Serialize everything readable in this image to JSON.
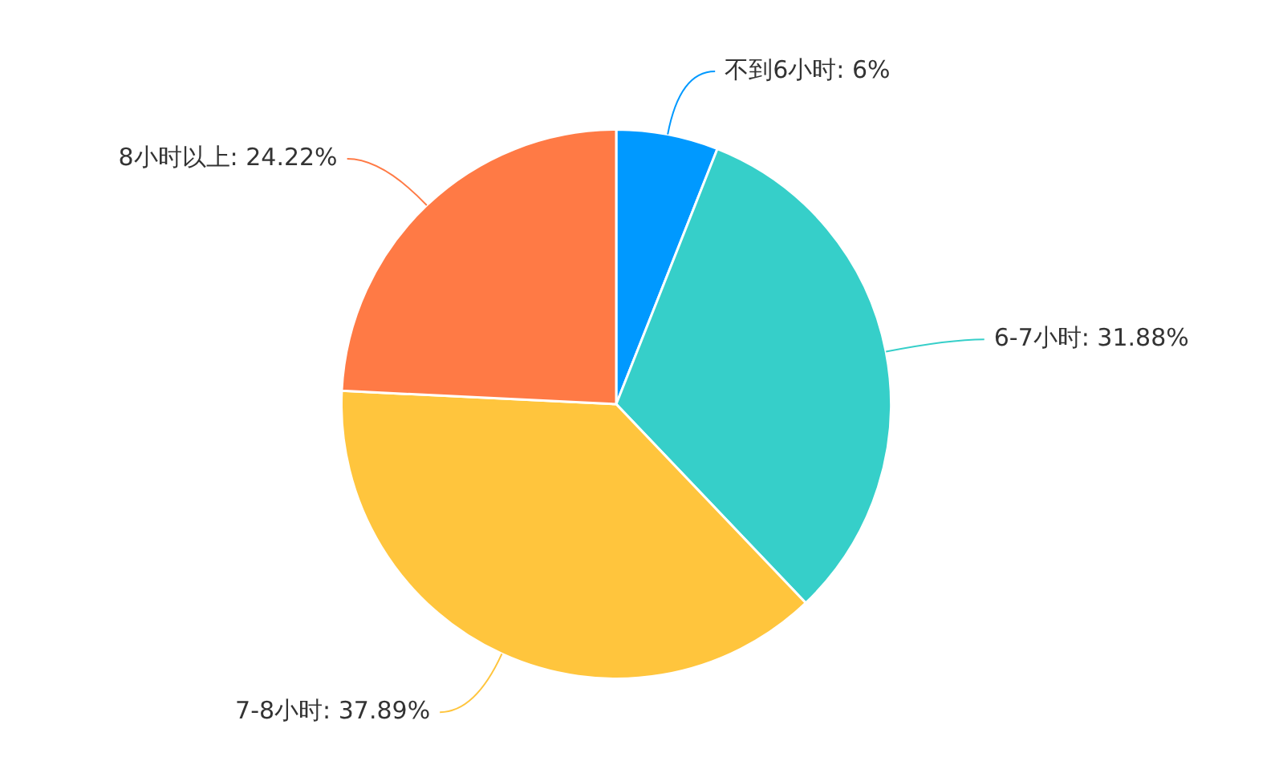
{
  "chart_data": {
    "type": "pie",
    "categories": [
      "不到6小时",
      "6-7小时",
      "7-8小时",
      "8小时以上"
    ],
    "values": [
      6,
      31.88,
      37.89,
      24.22
    ],
    "value_labels": [
      "6%",
      "31.88%",
      "37.89%",
      "24.22%"
    ],
    "colors": [
      "#0099ff",
      "#36cfc9",
      "#ffc53d",
      "#ff7a45"
    ],
    "legend": false
  }
}
